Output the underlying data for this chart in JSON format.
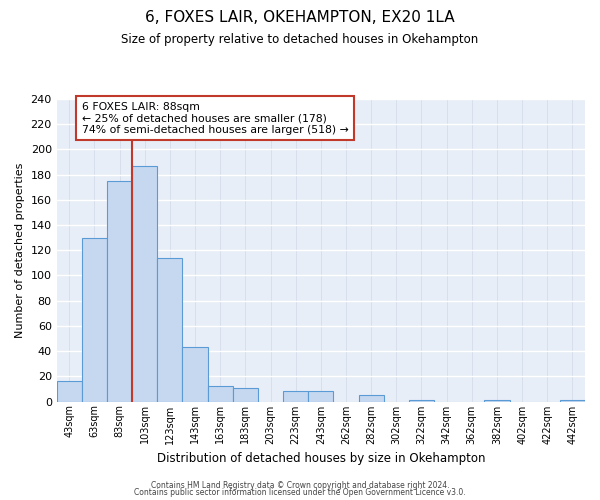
{
  "title": "6, FOXES LAIR, OKEHAMPTON, EX20 1LA",
  "subtitle": "Size of property relative to detached houses in Okehampton",
  "xlabel": "Distribution of detached houses by size in Okehampton",
  "ylabel": "Number of detached properties",
  "bar_labels": [
    "43sqm",
    "63sqm",
    "83sqm",
    "103sqm",
    "123sqm",
    "143sqm",
    "163sqm",
    "183sqm",
    "203sqm",
    "223sqm",
    "243sqm",
    "262sqm",
    "282sqm",
    "302sqm",
    "322sqm",
    "342sqm",
    "362sqm",
    "382sqm",
    "402sqm",
    "422sqm",
    "442sqm"
  ],
  "bar_values": [
    16,
    130,
    175,
    187,
    114,
    43,
    12,
    11,
    0,
    8,
    8,
    0,
    5,
    0,
    1,
    0,
    0,
    1,
    0,
    0,
    1
  ],
  "bar_color": "#c5d8f0",
  "bar_edge_color": "#5b9bd5",
  "background_color": "#e8eef7",
  "grid_color": "#d0d8e8",
  "annotation_title": "6 FOXES LAIR: 88sqm",
  "annotation_line1": "← 25% of detached houses are smaller (178)",
  "annotation_line2": "74% of semi-detached houses are larger (518) →",
  "annotation_box_edge": "#c0392b",
  "annotation_line_color": "#c0392b",
  "ylim": [
    0,
    240
  ],
  "yticks": [
    0,
    20,
    40,
    60,
    80,
    100,
    120,
    140,
    160,
    180,
    200,
    220,
    240
  ],
  "footer1": "Contains HM Land Registry data © Crown copyright and database right 2024.",
  "footer2": "Contains public sector information licensed under the Open Government Licence v3.0."
}
